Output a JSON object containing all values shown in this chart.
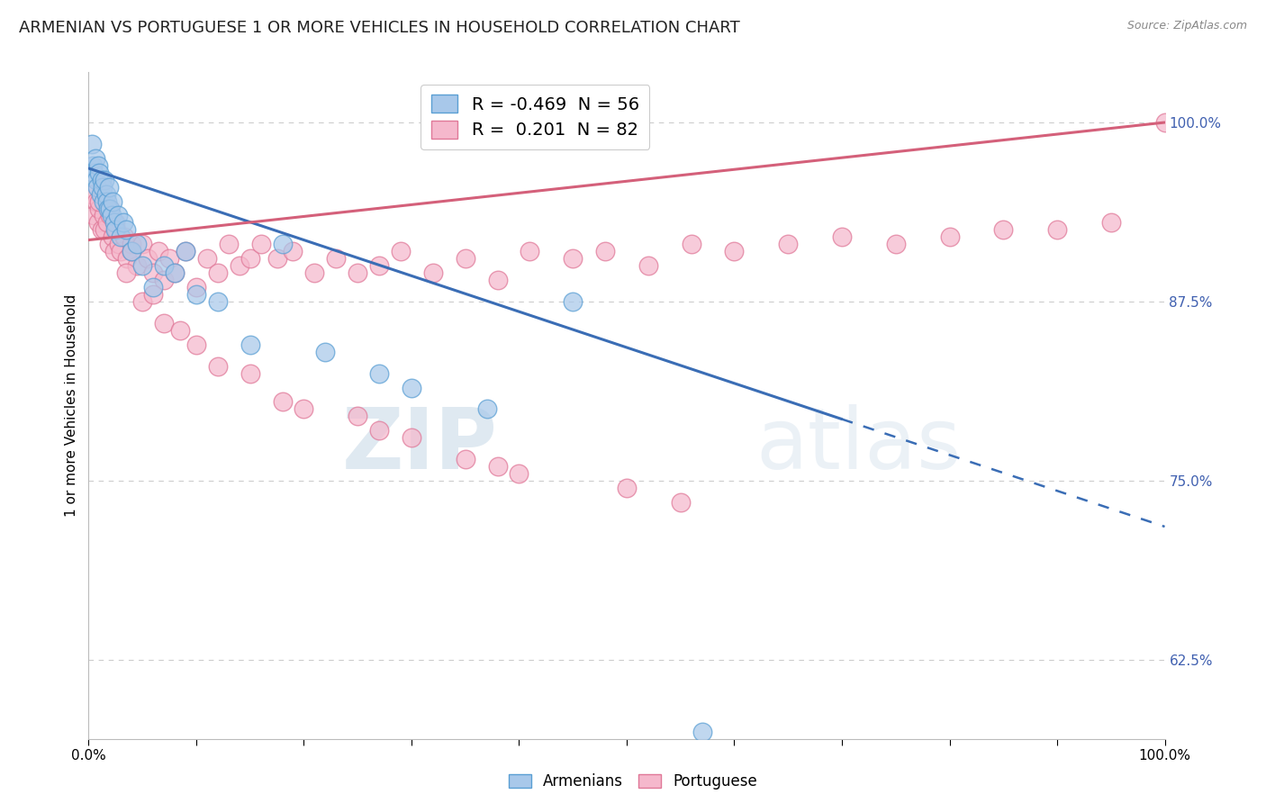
{
  "title": "ARMENIAN VS PORTUGUESE 1 OR MORE VEHICLES IN HOUSEHOLD CORRELATION CHART",
  "source": "Source: ZipAtlas.com",
  "ylabel": "1 or more Vehicles in Household",
  "watermark": "ZIPatlas",
  "armenian_R": -0.469,
  "armenian_N": 56,
  "portuguese_R": 0.201,
  "portuguese_N": 82,
  "armenian_color": "#a8c8ea",
  "armenian_edge_color": "#5a9fd4",
  "portuguese_color": "#f5b8cc",
  "portuguese_edge_color": "#e07898",
  "trend_armenian_color": "#3a6db5",
  "trend_portuguese_color": "#d4607a",
  "xmin": 0.0,
  "xmax": 100.0,
  "ymin": 57.0,
  "ymax": 103.5,
  "yticks": [
    62.5,
    75.0,
    87.5,
    100.0
  ],
  "ytick_labels": [
    "62.5%",
    "75.0%",
    "87.5%",
    "100.0%"
  ],
  "xtick_positions": [
    0,
    10,
    20,
    30,
    40,
    50,
    60,
    70,
    80,
    90,
    100
  ],
  "xtick_labels_shown": [
    "0.0%",
    "",
    "",
    "",
    "",
    "",
    "",
    "",
    "",
    "",
    "100.0%"
  ],
  "grid_color": "#cccccc",
  "background_color": "#ffffff",
  "title_fontsize": 13,
  "axis_label_fontsize": 11,
  "tick_fontsize": 11,
  "legend_fontsize": 14,
  "arm_trend_y0": 96.8,
  "arm_trend_y100": 71.8,
  "por_trend_y0": 91.8,
  "por_trend_y100": 100.0,
  "arm_dashed_start_x": 70,
  "arm_dashed_start_y": 75.0,
  "arm_dashed_end_x": 100,
  "arm_dashed_end_y": 67.5,
  "armenian_points_x": [
    0.3,
    0.4,
    0.5,
    0.6,
    0.7,
    0.8,
    0.9,
    1.0,
    1.1,
    1.2,
    1.3,
    1.4,
    1.5,
    1.6,
    1.7,
    1.8,
    1.9,
    2.0,
    2.1,
    2.2,
    2.4,
    2.5,
    2.7,
    3.0,
    3.2,
    3.5,
    4.0,
    4.5,
    5.0,
    6.0,
    7.0,
    8.0,
    9.0,
    10.0,
    12.0,
    15.0,
    18.0,
    22.0,
    27.0,
    30.0,
    37.0,
    45.0,
    57.0
  ],
  "armenian_points_y": [
    98.5,
    97.0,
    96.5,
    97.5,
    96.0,
    95.5,
    97.0,
    96.5,
    95.0,
    96.0,
    95.5,
    94.5,
    96.0,
    95.0,
    94.5,
    94.0,
    95.5,
    94.0,
    93.5,
    94.5,
    93.0,
    92.5,
    93.5,
    92.0,
    93.0,
    92.5,
    91.0,
    91.5,
    90.0,
    88.5,
    90.0,
    89.5,
    91.0,
    88.0,
    87.5,
    84.5,
    91.5,
    84.0,
    82.5,
    81.5,
    80.0,
    87.5,
    57.5
  ],
  "portuguese_points_x": [
    0.3,
    0.5,
    0.7,
    0.9,
    1.0,
    1.2,
    1.4,
    1.5,
    1.7,
    1.9,
    2.0,
    2.2,
    2.4,
    2.6,
    2.8,
    3.0,
    3.3,
    3.6,
    4.0,
    4.5,
    5.0,
    5.5,
    6.0,
    6.5,
    7.0,
    7.5,
    8.0,
    9.0,
    10.0,
    11.0,
    12.0,
    13.0,
    14.0,
    15.0,
    16.0,
    17.5,
    19.0,
    21.0,
    23.0,
    25.0,
    27.0,
    29.0,
    32.0,
    35.0,
    38.0,
    41.0,
    45.0,
    48.0,
    52.0,
    56.0,
    60.0,
    65.0,
    70.0,
    75.0,
    80.0,
    85.0,
    90.0,
    95.0,
    100.0,
    1.0,
    2.0,
    3.5,
    5.0,
    7.0,
    10.0,
    15.0,
    20.0,
    25.0,
    30.0,
    35.0,
    40.0,
    50.0,
    2.5,
    4.0,
    6.0,
    8.5,
    12.0,
    18.0,
    27.0,
    38.0,
    55.0
  ],
  "portuguese_points_y": [
    95.0,
    93.5,
    94.5,
    93.0,
    94.0,
    92.5,
    93.5,
    92.5,
    93.0,
    91.5,
    93.5,
    92.0,
    91.0,
    92.5,
    91.5,
    91.0,
    92.0,
    90.5,
    91.5,
    90.0,
    91.5,
    90.5,
    89.5,
    91.0,
    89.0,
    90.5,
    89.5,
    91.0,
    88.5,
    90.5,
    89.5,
    91.5,
    90.0,
    90.5,
    91.5,
    90.5,
    91.0,
    89.5,
    90.5,
    89.5,
    90.0,
    91.0,
    89.5,
    90.5,
    89.0,
    91.0,
    90.5,
    91.0,
    90.0,
    91.5,
    91.0,
    91.5,
    92.0,
    91.5,
    92.0,
    92.5,
    92.5,
    93.0,
    100.0,
    94.5,
    94.0,
    89.5,
    87.5,
    86.0,
    84.5,
    82.5,
    80.0,
    79.5,
    78.0,
    76.5,
    75.5,
    74.5,
    93.0,
    91.0,
    88.0,
    85.5,
    83.0,
    80.5,
    78.5,
    76.0,
    73.5
  ]
}
